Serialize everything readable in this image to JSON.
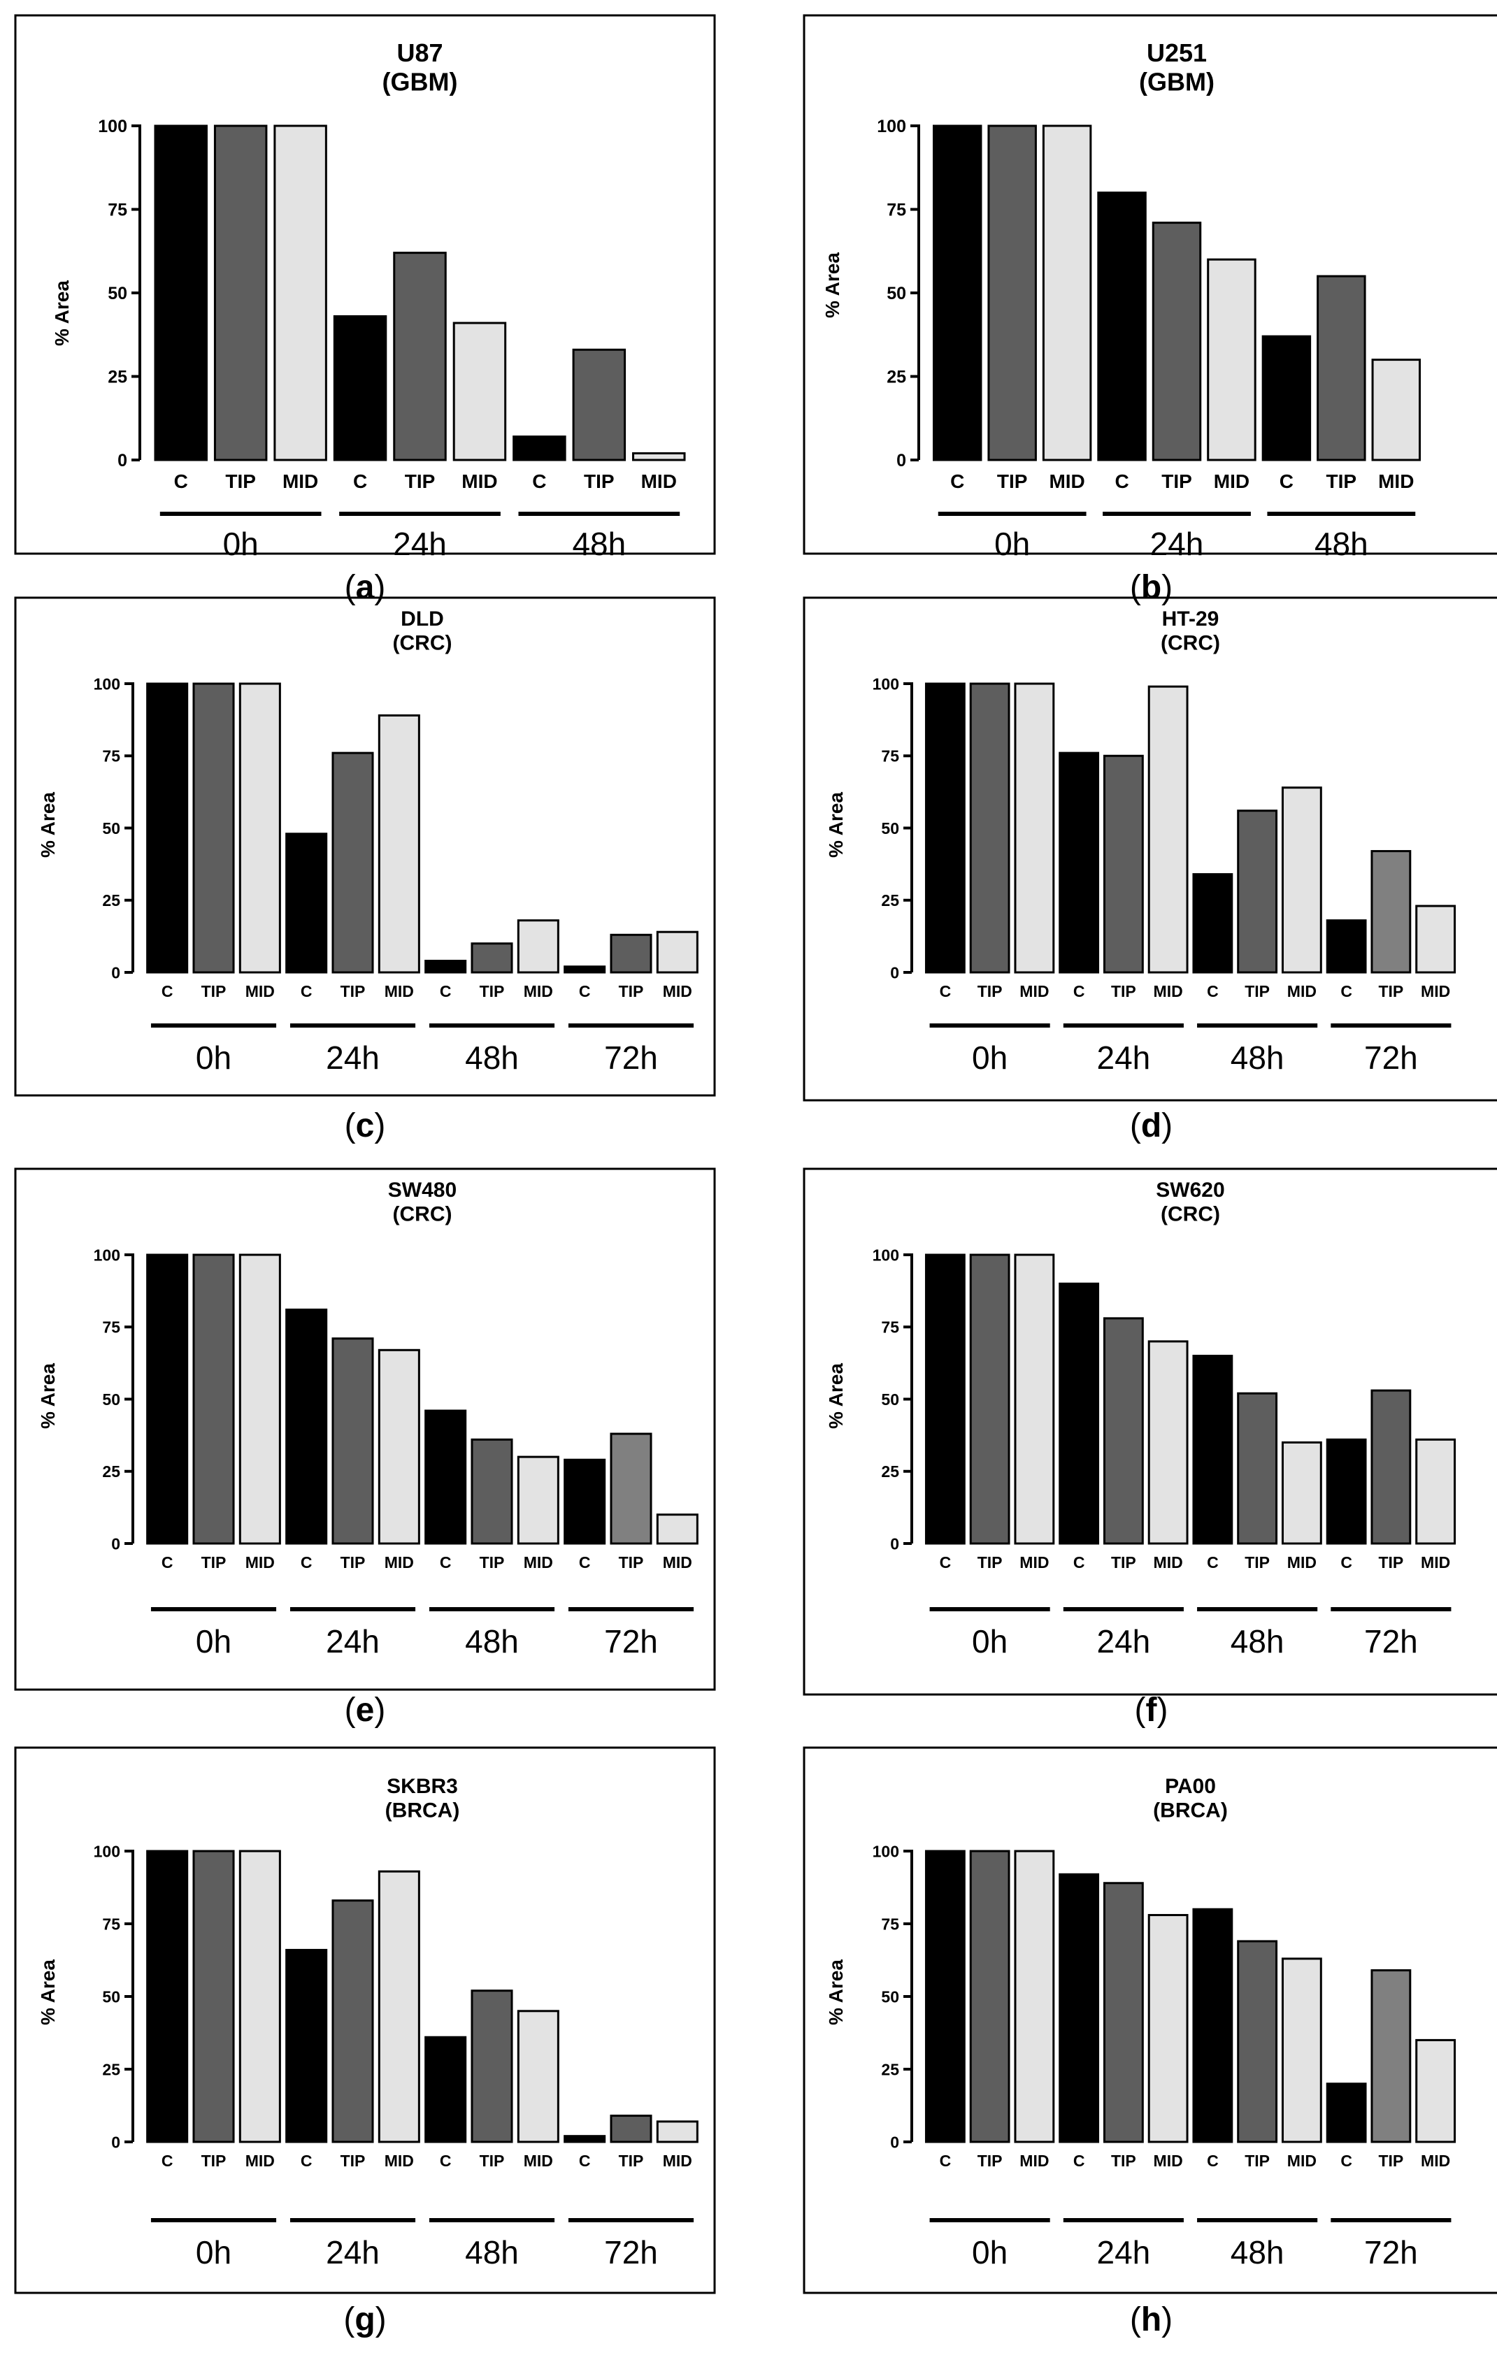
{
  "axis": {
    "ylabel": "% Area",
    "ticks": [
      "0",
      "25",
      "50",
      "75",
      "100"
    ]
  },
  "colors": {
    "C": "#000000",
    "TIP": "#5e5e5e",
    "MID": "#e3e3e3",
    "TIP_alt": "#808080",
    "border": "#000000"
  },
  "chart_data": [
    {
      "panel": "(a)",
      "letter": "a",
      "type": "bar",
      "title": "U87",
      "subtitle": "(GBM)",
      "ylabel": "% Area",
      "ylim": [
        0,
        100
      ],
      "groups": [
        "0h",
        "24h",
        "48h"
      ],
      "series": [
        {
          "name": "C",
          "values": [
            100,
            43,
            7
          ]
        },
        {
          "name": "TIP",
          "values": [
            100,
            62,
            33
          ]
        },
        {
          "name": "MID",
          "values": [
            100,
            41,
            2
          ]
        }
      ]
    },
    {
      "panel": "(b)",
      "letter": "b",
      "type": "bar",
      "title": "U251",
      "subtitle": "(GBM)",
      "ylabel": "% Area",
      "ylim": [
        0,
        100
      ],
      "groups": [
        "0h",
        "24h",
        "48h"
      ],
      "series": [
        {
          "name": "C",
          "values": [
            100,
            80,
            37
          ]
        },
        {
          "name": "TIP",
          "values": [
            100,
            71,
            55
          ]
        },
        {
          "name": "MID",
          "values": [
            100,
            60,
            30
          ]
        }
      ]
    },
    {
      "panel": "(c)",
      "letter": "c",
      "type": "bar",
      "title": "DLD",
      "subtitle": "(CRC)",
      "ylabel": "% Area",
      "ylim": [
        0,
        100
      ],
      "groups": [
        "0h",
        "24h",
        "48h",
        "72h"
      ],
      "series": [
        {
          "name": "C",
          "values": [
            100,
            48,
            4,
            2
          ]
        },
        {
          "name": "TIP",
          "values": [
            100,
            76,
            10,
            13
          ]
        },
        {
          "name": "MID",
          "values": [
            100,
            89,
            18,
            14
          ]
        }
      ]
    },
    {
      "panel": "(d)",
      "letter": "d",
      "type": "bar",
      "title": "HT-29",
      "subtitle": "(CRC)",
      "ylabel": "% Area",
      "ylim": [
        0,
        100
      ],
      "groups": [
        "0h",
        "24h",
        "48h",
        "72h"
      ],
      "series": [
        {
          "name": "C",
          "values": [
            100,
            76,
            34,
            18
          ]
        },
        {
          "name": "TIP",
          "values": [
            100,
            75,
            56,
            42
          ]
        },
        {
          "name": "MID",
          "values": [
            100,
            99,
            64,
            23
          ]
        }
      ]
    },
    {
      "panel": "(e)",
      "letter": "e",
      "type": "bar",
      "title": "SW480",
      "subtitle": "(CRC)",
      "ylabel": "% Area",
      "ylim": [
        0,
        100
      ],
      "groups": [
        "0h",
        "24h",
        "48h",
        "72h"
      ],
      "series": [
        {
          "name": "C",
          "values": [
            100,
            81,
            46,
            29
          ]
        },
        {
          "name": "TIP",
          "values": [
            100,
            71,
            36,
            38
          ]
        },
        {
          "name": "MID",
          "values": [
            100,
            67,
            30,
            10
          ]
        }
      ]
    },
    {
      "panel": "(f)",
      "letter": "f",
      "type": "bar",
      "title": "SW620",
      "subtitle": "(CRC)",
      "ylabel": "% Area",
      "ylim": [
        0,
        100
      ],
      "groups": [
        "0h",
        "24h",
        "48h",
        "72h"
      ],
      "series": [
        {
          "name": "C",
          "values": [
            100,
            90,
            65,
            36
          ]
        },
        {
          "name": "TIP",
          "values": [
            100,
            78,
            52,
            53
          ]
        },
        {
          "name": "MID",
          "values": [
            100,
            70,
            35,
            36
          ]
        }
      ]
    },
    {
      "panel": "(g)",
      "letter": "g",
      "type": "bar",
      "title": "SKBR3",
      "subtitle": "(BRCA)",
      "ylabel": "% Area",
      "ylim": [
        0,
        100
      ],
      "groups": [
        "0h",
        "24h",
        "48h",
        "72h"
      ],
      "series": [
        {
          "name": "C",
          "values": [
            100,
            66,
            36,
            2
          ]
        },
        {
          "name": "TIP",
          "values": [
            100,
            83,
            52,
            9
          ]
        },
        {
          "name": "MID",
          "values": [
            100,
            93,
            45,
            7
          ]
        }
      ]
    },
    {
      "panel": "(h)",
      "letter": "h",
      "type": "bar",
      "title": "PA00",
      "subtitle": "(BRCA)",
      "ylabel": "% Area",
      "ylim": [
        0,
        100
      ],
      "groups": [
        "0h",
        "24h",
        "48h",
        "72h"
      ],
      "series": [
        {
          "name": "C",
          "values": [
            100,
            92,
            80,
            20
          ]
        },
        {
          "name": "TIP",
          "values": [
            100,
            89,
            69,
            59
          ]
        },
        {
          "name": "MID",
          "values": [
            100,
            78,
            63,
            35
          ]
        }
      ]
    }
  ]
}
